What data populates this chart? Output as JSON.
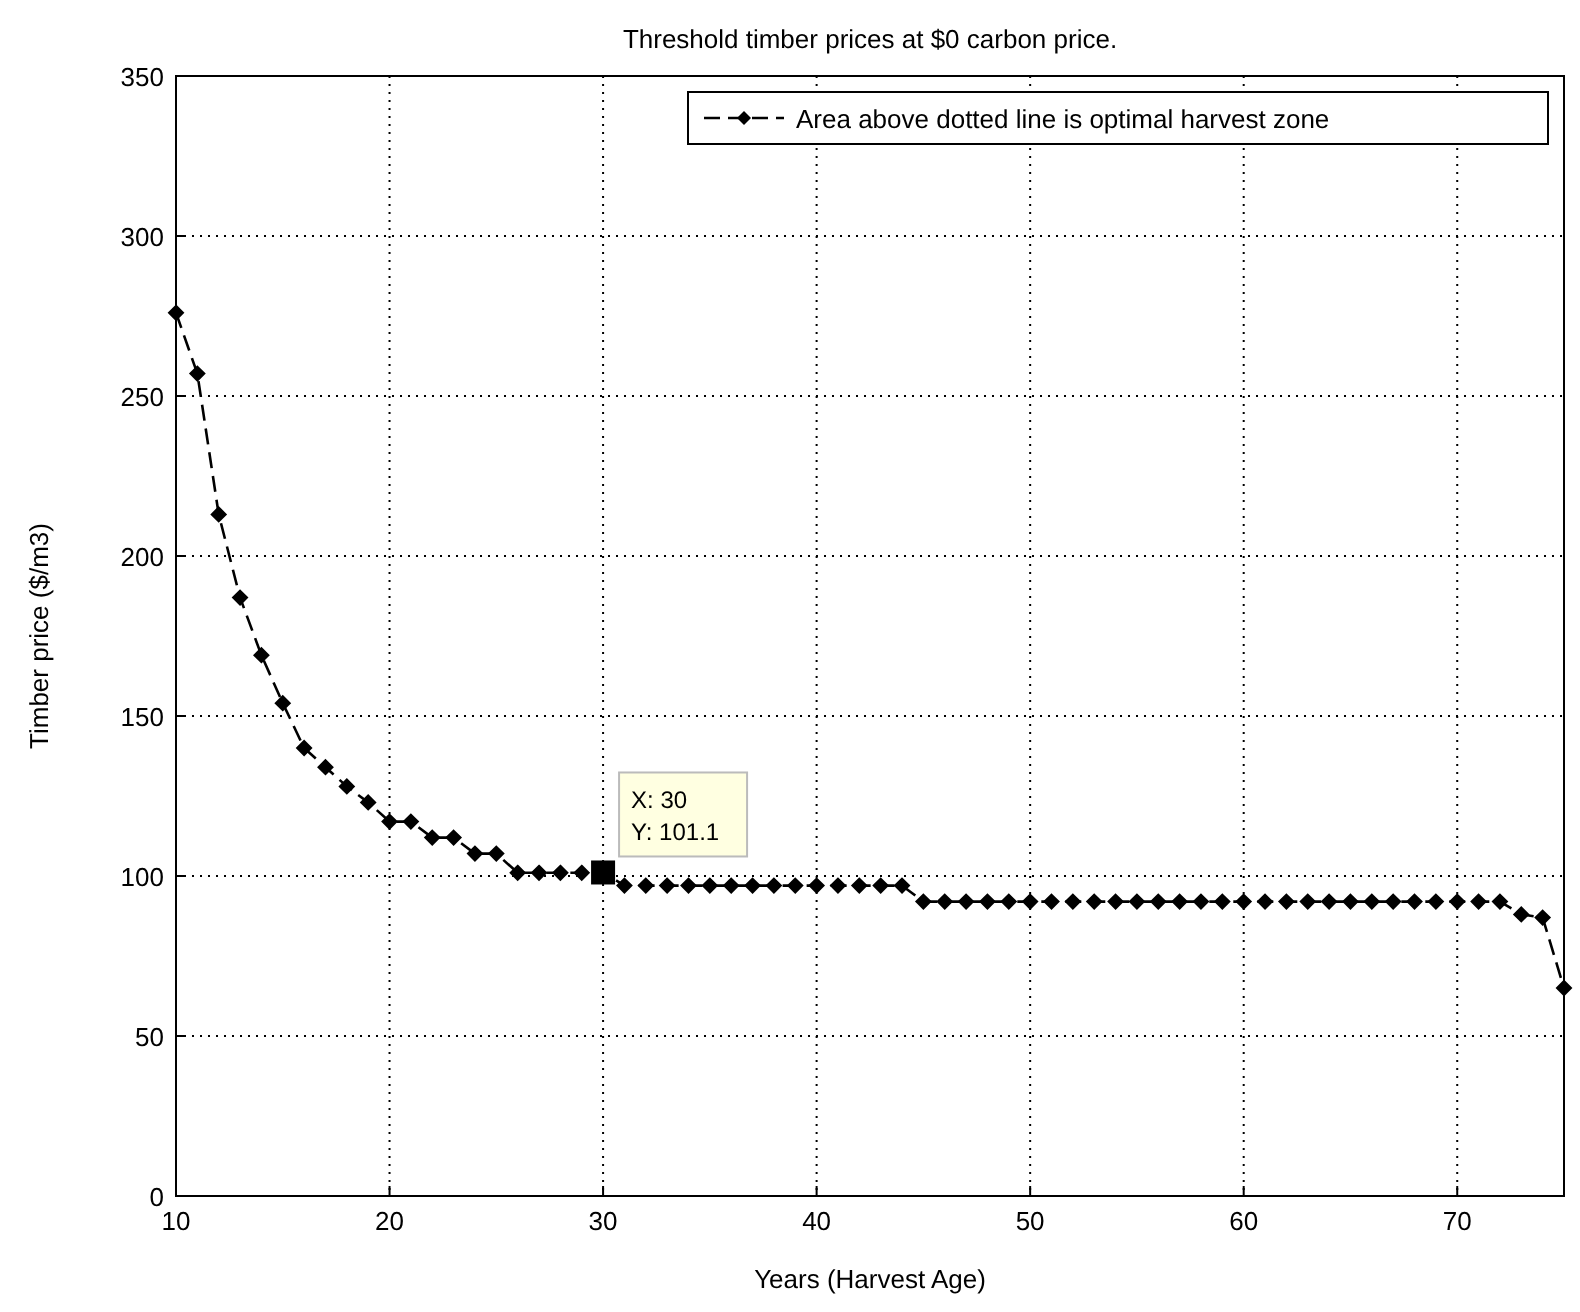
{
  "chart_data": {
    "type": "line",
    "title": "Threshold timber prices at $0 carbon price.",
    "xlabel": "Years (Harvest Age)",
    "ylabel": "Timber price ($/m3)",
    "x": [
      10,
      11,
      12,
      13,
      14,
      15,
      16,
      17,
      18,
      19,
      20,
      21,
      22,
      23,
      24,
      25,
      26,
      27,
      28,
      29,
      30,
      31,
      32,
      33,
      34,
      35,
      36,
      37,
      38,
      39,
      40,
      41,
      42,
      43,
      44,
      45,
      46,
      47,
      48,
      49,
      50,
      51,
      52,
      53,
      54,
      55,
      56,
      57,
      58,
      59,
      60,
      61,
      62,
      63,
      64,
      65,
      66,
      67,
      68,
      69,
      70,
      71,
      72,
      73,
      74,
      75
    ],
    "series": [
      {
        "name": "Area above dotted line is optimal harvest zone",
        "color": "#000000",
        "values": [
          276,
          257,
          213,
          187,
          169,
          154,
          140,
          134,
          128,
          123,
          117,
          117,
          112,
          112,
          107,
          107,
          101,
          101,
          101,
          101,
          101.1,
          97,
          97,
          97,
          97,
          97,
          97,
          97,
          97,
          97,
          97,
          97,
          97,
          97,
          97,
          92,
          92,
          92,
          92,
          92,
          92,
          92,
          92,
          92,
          92,
          92,
          92,
          92,
          92,
          92,
          92,
          92,
          92,
          92,
          92,
          92,
          92,
          92,
          92,
          92,
          92,
          92,
          92,
          88,
          87,
          65
        ]
      }
    ],
    "xlim": [
      10,
      75
    ],
    "ylim": [
      0,
      350
    ],
    "xticks": [
      10,
      20,
      30,
      40,
      50,
      60,
      70
    ],
    "yticks": [
      0,
      50,
      100,
      150,
      200,
      250,
      300,
      350
    ],
    "grid": true,
    "legend": "top right",
    "marker": "diamond",
    "line_style": "dashed",
    "annotations": [
      {
        "text": "X: 30\nY: 101.1",
        "x": 30,
        "y": 101.1
      }
    ]
  }
}
